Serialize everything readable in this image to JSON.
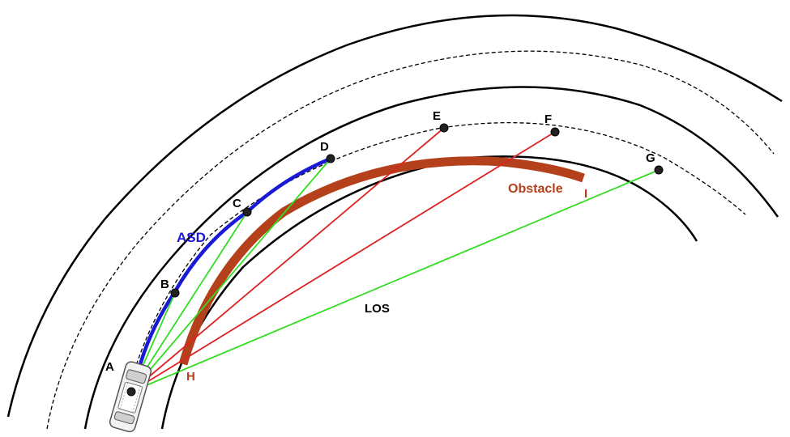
{
  "diagram": {
    "points": {
      "A": "A",
      "B": "B",
      "C": "C",
      "D": "D",
      "E": "E",
      "F": "F",
      "G": "G",
      "H": "H",
      "I": "I"
    },
    "labels": {
      "asd": "ASD",
      "obstacle": "Obstacle",
      "los": "LOS"
    },
    "colors": {
      "road_edge": "#000000",
      "lane_center": "#000000",
      "asd": "#1a1ad6",
      "obstacle": "#b5401c",
      "sight_visible": "#33dd22",
      "sight_blocked": "#dd2222",
      "vehicle": "#777777"
    }
  }
}
